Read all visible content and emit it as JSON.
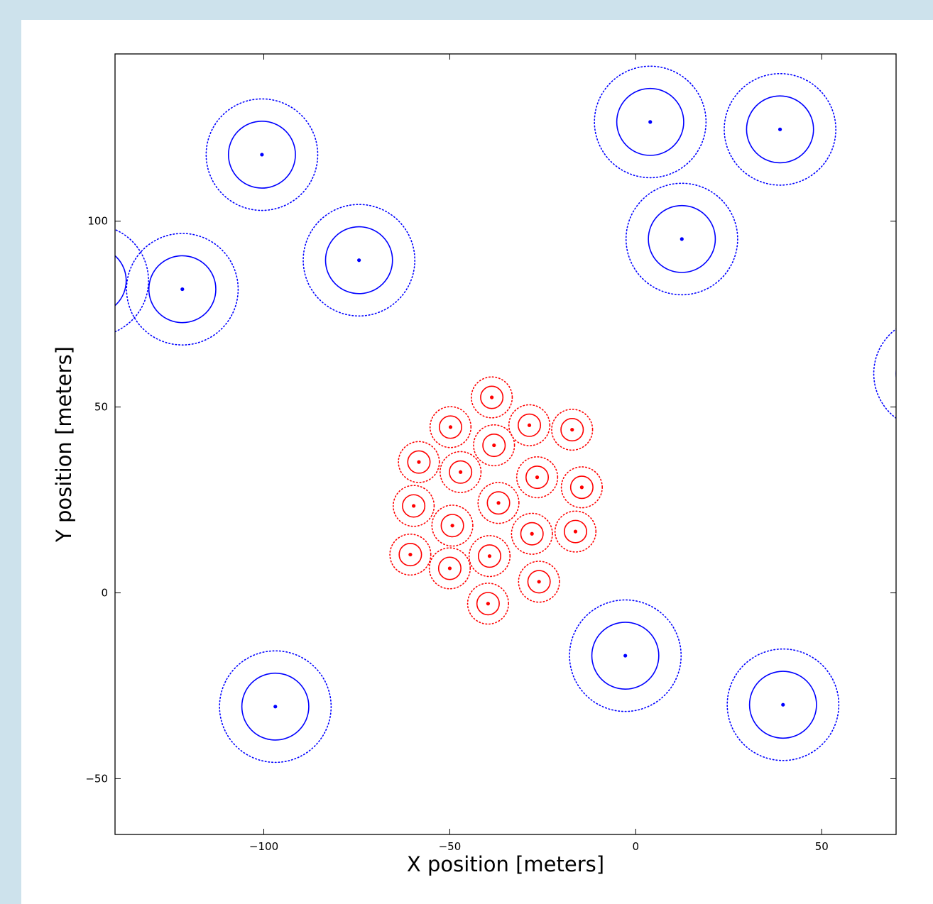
{
  "chart_data": {
    "type": "scatter",
    "title": "",
    "xlabel": "X position [meters]",
    "ylabel": "Y position [meters]",
    "xlim": [
      -140,
      70
    ],
    "ylim": [
      -65,
      145
    ],
    "xticks": [
      -100,
      -50,
      0,
      50
    ],
    "yticks": [
      -50,
      0,
      50,
      100
    ],
    "xtick_labels": [
      "−100",
      "−50",
      "0",
      "50"
    ],
    "ytick_labels": [
      "−50",
      "0",
      "50",
      "100"
    ],
    "grid": false,
    "legend": false,
    "series": [
      {
        "color": "#0000ff",
        "inner_radius": 9,
        "outer_radius": 15,
        "points": [
          {
            "x": -100.5,
            "y": 117.9
          },
          {
            "x": -74.4,
            "y": 89.5
          },
          {
            "x": -121.9,
            "y": 81.7
          },
          {
            "x": 3.9,
            "y": 126.7
          },
          {
            "x": 38.8,
            "y": 124.7
          },
          {
            "x": 12.4,
            "y": 95.2
          },
          {
            "x": -2.8,
            "y": -16.9
          },
          {
            "x": -96.9,
            "y": -30.6
          },
          {
            "x": 39.6,
            "y": -30.1
          },
          {
            "x": -146,
            "y": 84
          },
          {
            "x": 79,
            "y": 59
          }
        ]
      },
      {
        "color": "#ff0000",
        "inner_radius": 3,
        "outer_radius": 5.5,
        "points": [
          {
            "x": -38.7,
            "y": 52.6
          },
          {
            "x": -49.8,
            "y": 44.6
          },
          {
            "x": -28.6,
            "y": 45.1
          },
          {
            "x": -17.1,
            "y": 43.9
          },
          {
            "x": -38.1,
            "y": 39.7
          },
          {
            "x": -58.3,
            "y": 35.2
          },
          {
            "x": -47.1,
            "y": 32.5
          },
          {
            "x": -26.5,
            "y": 31.1
          },
          {
            "x": -14.5,
            "y": 28.4
          },
          {
            "x": -59.7,
            "y": 23.4
          },
          {
            "x": -36.9,
            "y": 24.2
          },
          {
            "x": -49.3,
            "y": 18.1
          },
          {
            "x": -27.9,
            "y": 15.9
          },
          {
            "x": -16.2,
            "y": 16.5
          },
          {
            "x": -60.6,
            "y": 10.3
          },
          {
            "x": -39.3,
            "y": 9.9
          },
          {
            "x": -50.0,
            "y": 6.6
          },
          {
            "x": -26.0,
            "y": 3.0
          },
          {
            "x": -39.7,
            "y": -2.9
          }
        ]
      }
    ]
  }
}
